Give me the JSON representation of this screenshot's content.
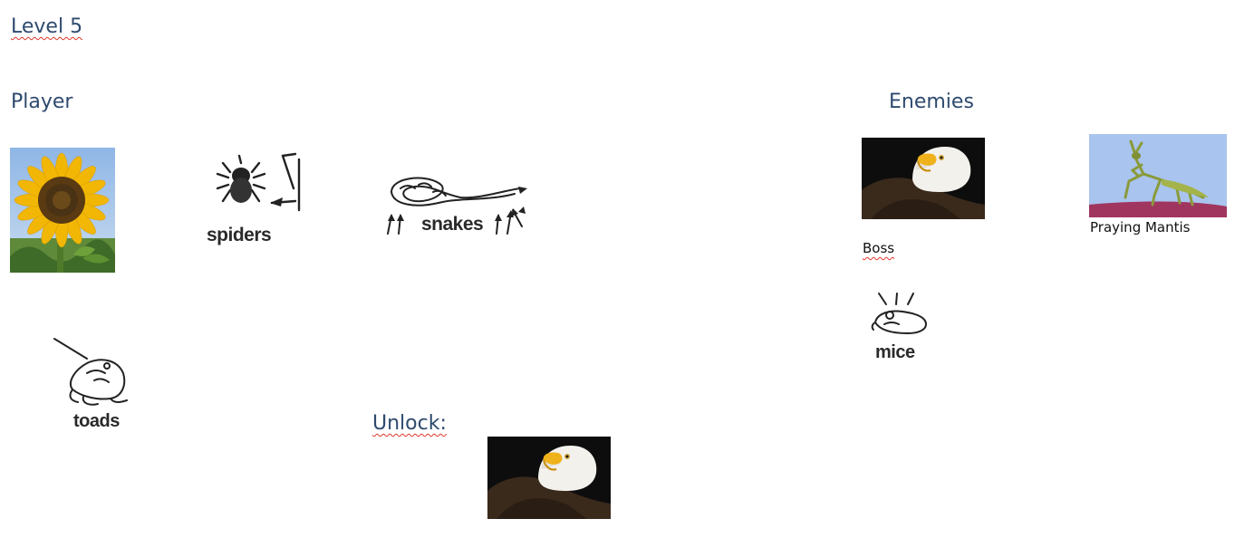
{
  "page": {
    "level_title": "Level 5",
    "player_heading": "Player",
    "enemies_heading": "Enemies",
    "unlock_heading": "Unlock:"
  },
  "player": {
    "sunflower": "sunflower-image",
    "sketches": [
      {
        "label": "spiders"
      },
      {
        "label": "snakes"
      },
      {
        "label": "toads"
      }
    ]
  },
  "enemies": {
    "boss_caption": "Boss",
    "mantis_caption": "Praying Mantis",
    "mice_label": "mice"
  },
  "colors": {
    "heading": "#2e4a6e",
    "spellcheck": "#e0352b",
    "sky": "#a9c4ee",
    "petal": "#f2b705"
  }
}
